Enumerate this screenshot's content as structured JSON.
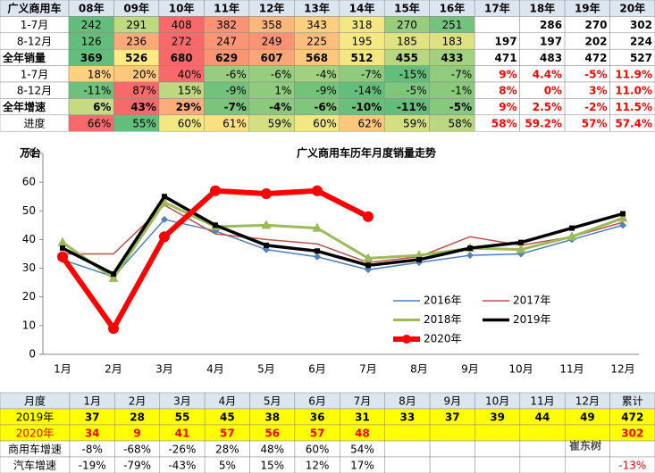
{
  "top_table": {
    "header": [
      "广义商用车",
      "08年",
      "09年",
      "10年",
      "11年",
      "12年",
      "13年",
      "14年",
      "15年",
      "16年",
      "17年",
      "18年",
      "19年",
      "20年"
    ],
    "rows": [
      {
        "label": "1-7月",
        "cells": [
          "242",
          "291",
          "408",
          "382",
          "358",
          "343",
          "318",
          "270",
          "251",
          null,
          "286",
          "270",
          "302"
        ]
      },
      {
        "label": "8-12月",
        "cells": [
          "126",
          "236",
          "272",
          "247",
          "249",
          "225",
          "195",
          "185",
          "183",
          "197",
          "197",
          "202",
          "224"
        ]
      },
      {
        "label": "全年销量",
        "cells": [
          "369",
          "526",
          "680",
          "629",
          "607",
          "568",
          "512",
          "455",
          "433",
          "471",
          "483",
          "472",
          "527"
        ]
      },
      {
        "label": "1-7月",
        "cells": [
          "18%",
          "20%",
          "40%",
          "-6%",
          "-6%",
          "-4%",
          "-7%",
          "-15%",
          "-7%",
          "9%",
          "4.4%",
          "-5%",
          "11.9%"
        ]
      },
      {
        "label": "8-12月",
        "cells": [
          "-11%",
          "87%",
          "15%",
          "-9%",
          "1%",
          "-9%",
          "-14%",
          "-5%",
          "-1%",
          "8%",
          "0%",
          "3%",
          "11.0%"
        ]
      },
      {
        "label": "全年增速",
        "cells": [
          "6%",
          "43%",
          "29%",
          "-7%",
          "-4%",
          "-6%",
          "-10%",
          "-11%",
          "-5%",
          "9%",
          "2.5%",
          "-2%",
          "11.5%"
        ]
      },
      {
        "label": "进度",
        "cells": [
          "66%",
          "55%",
          "60%",
          "61%",
          "59%",
          "60%",
          "62%",
          "59%",
          "58%",
          "58%",
          "59.2%",
          "57%",
          "57.4%"
        ]
      }
    ]
  },
  "chart_data": {
    "type": "line",
    "title": "广义商用车历年月度销量走势",
    "y_label": "万台",
    "categories": [
      "1月",
      "2月",
      "3月",
      "4月",
      "5月",
      "6月",
      "7月",
      "8月",
      "9月",
      "10月",
      "11月",
      "12月"
    ],
    "ylim": [
      0,
      70
    ],
    "yticks": [
      0,
      10,
      20,
      30,
      40,
      50,
      60,
      70
    ],
    "legend": "lower right",
    "series": [
      {
        "name": "2016年",
        "color": "#4f81bd",
        "values": [
          33,
          27,
          47,
          43,
          36.5,
          34,
          29.5,
          32,
          34.5,
          35,
          40,
          45
        ]
      },
      {
        "name": "2017年",
        "color": "#c0504d",
        "values": [
          35,
          35,
          52,
          42,
          40,
          38.5,
          32,
          34,
          41,
          38,
          41,
          46
        ]
      },
      {
        "name": "2018年",
        "color": "#9bbb59",
        "values": [
          39,
          26.5,
          53,
          44.5,
          45,
          44,
          33.5,
          34.5,
          37,
          36.5,
          41,
          47.5
        ]
      },
      {
        "name": "2019年",
        "color": "#000000",
        "values": [
          37,
          28,
          55,
          45,
          38,
          36,
          31,
          33,
          37,
          39,
          44,
          49
        ]
      },
      {
        "name": "2020年",
        "color": "#ff0000",
        "values": [
          34,
          9,
          41,
          57,
          56,
          57,
          48,
          null,
          null,
          null,
          null,
          null
        ]
      }
    ]
  },
  "bottom_table": {
    "header": [
      "月度",
      "1月",
      "2月",
      "3月",
      "4月",
      "5月",
      "6月",
      "7月",
      "8月",
      "9月",
      "10月",
      "11月",
      "12月",
      "累计"
    ],
    "rows": [
      {
        "label": "2019年",
        "cells": [
          "37",
          "28",
          "55",
          "45",
          "38",
          "36",
          "31",
          "33",
          "37",
          "39",
          "44",
          "49",
          "472"
        ]
      },
      {
        "label": "2020年",
        "cells": [
          "34",
          "9",
          "41",
          "57",
          "56",
          "57",
          "48",
          null,
          null,
          null,
          null,
          null,
          "302"
        ]
      },
      {
        "label": "商用车增速",
        "cells": [
          "-8%",
          "-68%",
          "-26%",
          "28%",
          "48%",
          "60%",
          "54%",
          null,
          null,
          null,
          null,
          null,
          null
        ]
      },
      {
        "label": "汽车增速",
        "cells": [
          "-19%",
          "-79%",
          "-43%",
          "5%",
          "15%",
          "12%",
          "17%",
          null,
          null,
          null,
          null,
          null,
          "-13%"
        ]
      }
    ]
  },
  "watermark": "崔东树"
}
